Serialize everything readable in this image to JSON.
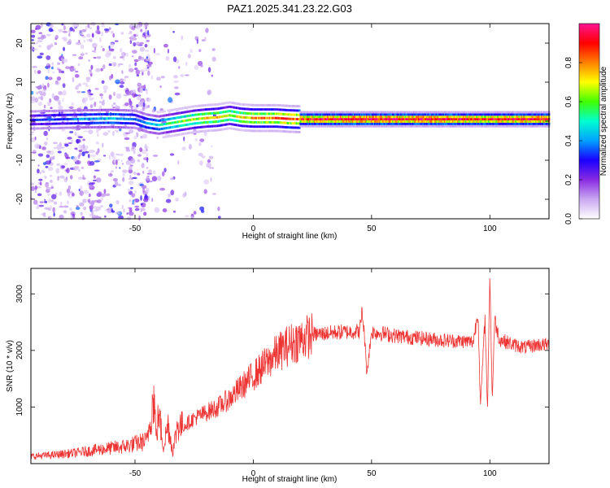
{
  "title": "PAZ1.2025.341.23.22.G03",
  "chart_data": [
    {
      "type": "heatmap",
      "xlabel": "Height of straight line (km)",
      "ylabel": "Frequency (Hz)",
      "xlim": [
        -94,
        125
      ],
      "ylim": [
        -25,
        25
      ],
      "x_ticks": [
        -50,
        0,
        50,
        100
      ],
      "y_ticks": [
        -20,
        -10,
        0,
        10,
        20
      ],
      "colorbar": {
        "label": "Normalized spectral amplitude",
        "range": [
          0,
          1
        ],
        "ticks": [
          0.0,
          0.2,
          0.4,
          0.6,
          0.8
        ],
        "colormap": [
          "#ffffff",
          "#c9a8f0",
          "#8a2be2",
          "#1a00ff",
          "#00a0ff",
          "#00ffd0",
          "#40ff00",
          "#ffff00",
          "#ff8000",
          "#ff0000",
          "#ff1493"
        ]
      },
      "ridge": {
        "x": [
          -94,
          -80,
          -70,
          -60,
          -50,
          -45,
          -40,
          -35,
          -30,
          -25,
          -20,
          -15,
          -10,
          -5,
          0,
          5,
          10,
          15,
          20,
          30,
          40,
          50,
          60,
          70,
          80,
          90,
          100,
          110,
          125
        ],
        "frequency": [
          0.3,
          0.5,
          0.6,
          0.7,
          0.5,
          -0.5,
          -1.0,
          -0.5,
          0.0,
          0.5,
          0.8,
          1.0,
          1.5,
          1.0,
          0.8,
          0.8,
          0.8,
          0.6,
          0.5,
          0.5,
          0.5,
          0.5,
          0.5,
          0.5,
          0.5,
          0.5,
          0.5,
          0.5,
          0.5
        ],
        "amplitude": [
          0.3,
          0.35,
          0.4,
          0.45,
          0.35,
          0.4,
          0.45,
          0.55,
          0.6,
          0.65,
          0.7,
          0.7,
          0.65,
          0.7,
          0.75,
          0.78,
          0.8,
          0.82,
          0.88,
          0.92,
          0.93,
          0.94,
          0.94,
          0.94,
          0.94,
          0.9,
          0.88,
          0.92,
          0.94
        ]
      }
    },
    {
      "type": "line",
      "xlabel": "Height of straight line (km)",
      "ylabel": "SNR (10 * v/v)",
      "xlim": [
        -94,
        125
      ],
      "ylim": [
        0,
        3450
      ],
      "x_ticks": [
        -50,
        0,
        50,
        100
      ],
      "y_ticks": [
        1000,
        2000,
        3000
      ],
      "color": "#ee3333",
      "envelope": {
        "x": [
          -94,
          -85,
          -75,
          -65,
          -55,
          -45,
          -42,
          -41,
          -40,
          -38,
          -36,
          -34,
          -32,
          -30,
          -25,
          -20,
          -15,
          -10,
          -5,
          0,
          5,
          10,
          15,
          20,
          25,
          30,
          35,
          40,
          45,
          46,
          47,
          48,
          50,
          55,
          60,
          70,
          80,
          90,
          93,
          95,
          96,
          98,
          99,
          100,
          101,
          102,
          104,
          110,
          115,
          120,
          125
        ],
        "y": [
          130,
          150,
          190,
          250,
          300,
          400,
          1200,
          450,
          900,
          300,
          700,
          200,
          700,
          650,
          800,
          900,
          1000,
          1150,
          1350,
          1550,
          1750,
          1950,
          2100,
          2200,
          2280,
          2300,
          2320,
          2330,
          2340,
          2700,
          2250,
          1600,
          2330,
          2300,
          2260,
          2220,
          2180,
          2160,
          2150,
          2700,
          1000,
          2600,
          900,
          3400,
          1100,
          2550,
          2200,
          2100,
          2050,
          2100,
          2100
        ]
      }
    }
  ]
}
